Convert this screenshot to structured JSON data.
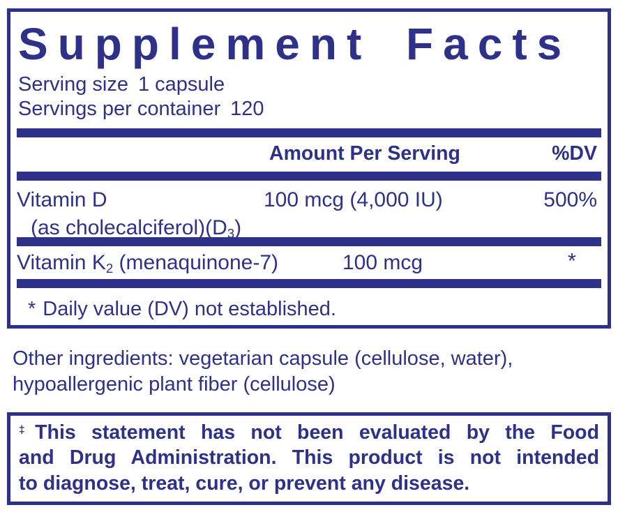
{
  "colors": {
    "navy": "#2e3189"
  },
  "panel": {
    "title": "Supplement Facts",
    "serving_size_label": "Serving size",
    "serving_size_value": "1 capsule",
    "servings_per_container_label": "Servings per container",
    "servings_per_container_value": "120",
    "header": {
      "amount_label": "Amount Per Serving",
      "dv_label": "%DV"
    },
    "rows": [
      {
        "name": "Vitamin D",
        "name_detail_pre": "(as cholecalciferol)(D",
        "name_detail_sub": "3",
        "name_detail_post": ")",
        "amount": "100 mcg (4,000 IU)",
        "dv": "500%"
      },
      {
        "name_pre": "Vitamin K",
        "name_sub": "2",
        "name_post": " (menaquinone-7)",
        "amount": "100 mcg",
        "dv": "*"
      }
    ],
    "footnote_star": "*",
    "footnote_text": "Daily value (DV) not established."
  },
  "other_ingredients": {
    "lines": [
      "Other ingredients: vegetarian capsule (cellulose, water),",
      "hypoallergenic plant fiber (cellulose)"
    ]
  },
  "disclaimer": {
    "dagger": "‡",
    "lines": [
      "This statement has not been evaluated by the Food",
      "and Drug Administration. This product is not intended",
      "to diagnose, treat, cure, or prevent any disease."
    ]
  }
}
